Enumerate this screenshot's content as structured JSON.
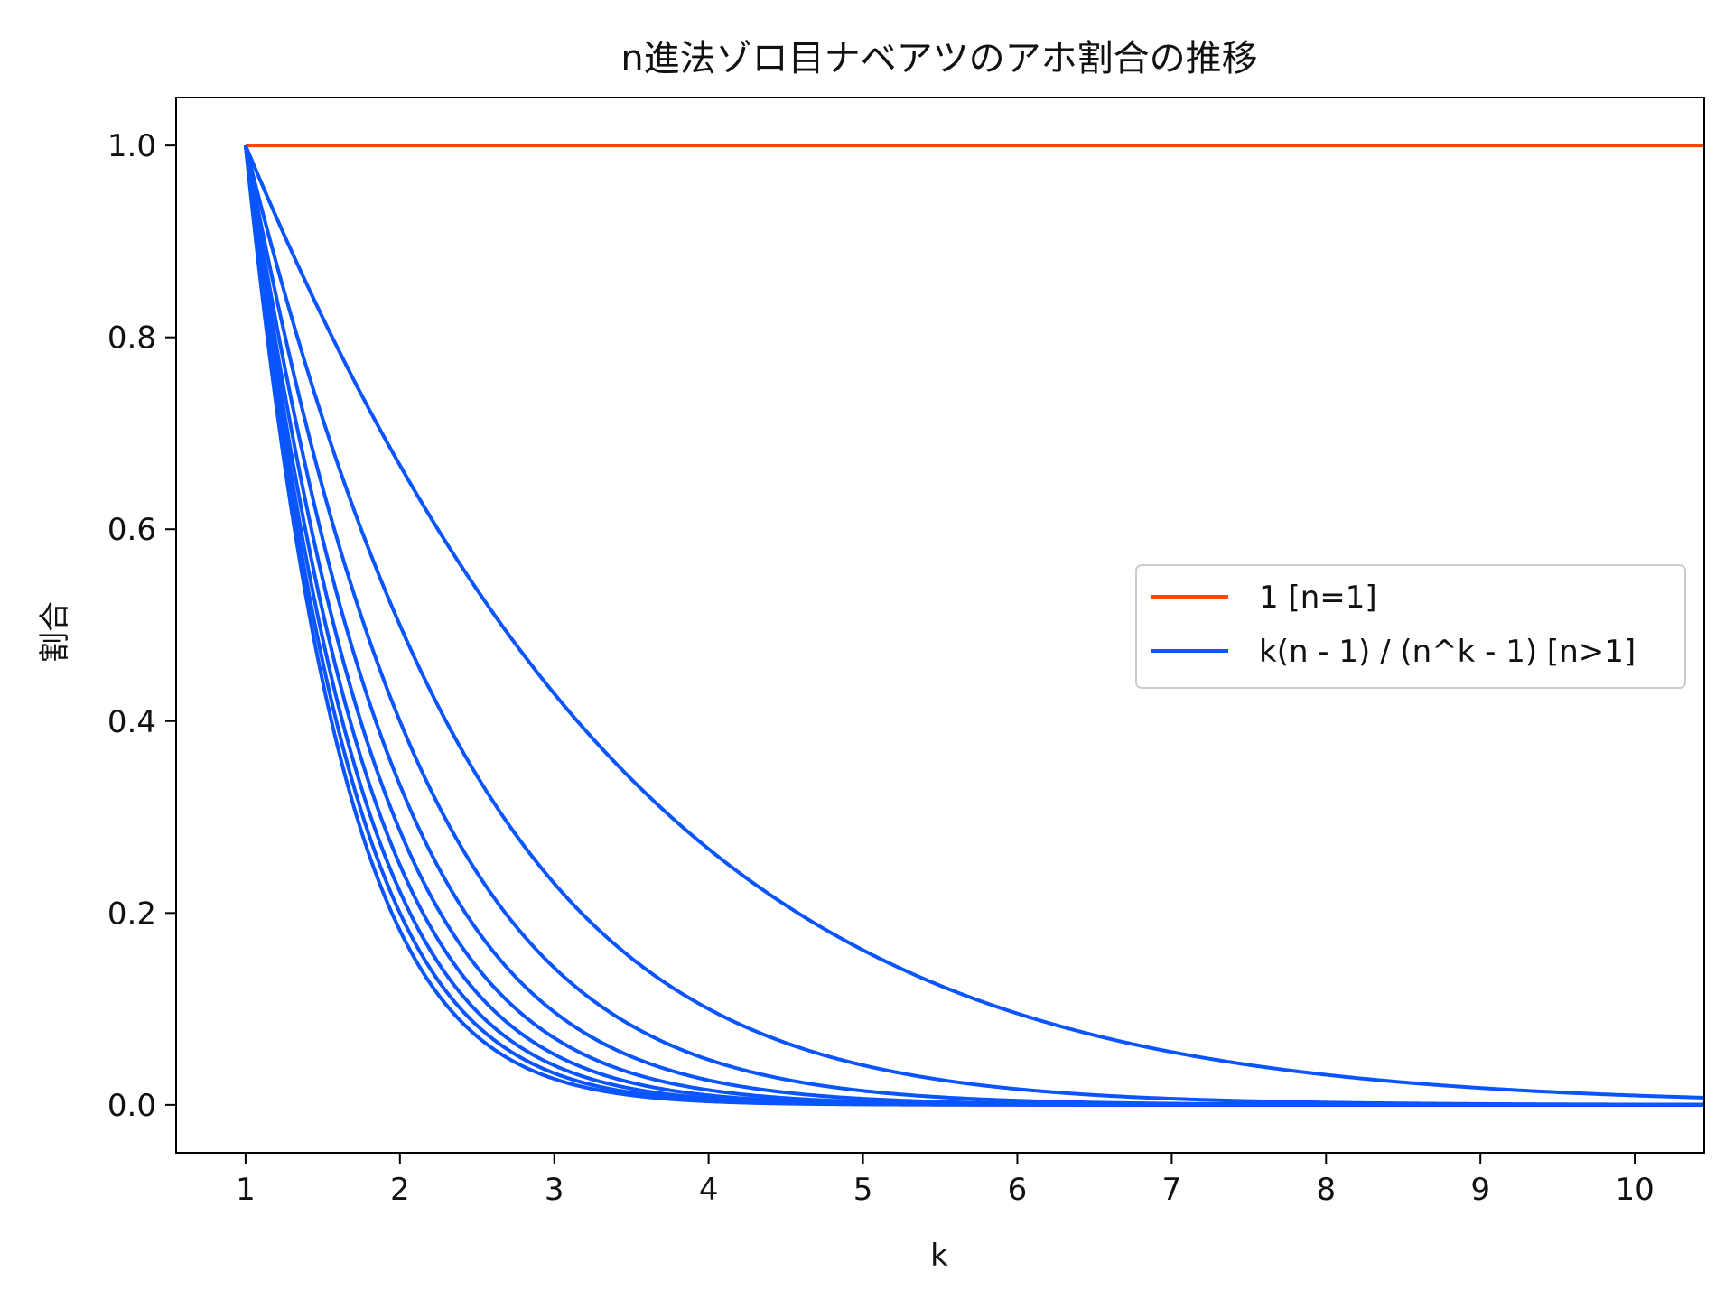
{
  "chart_data": {
    "type": "line",
    "title": "n進法ゾロ目ナベアツのアホ割合の推移",
    "xlabel": "k",
    "ylabel": "割合",
    "xlim": [
      0.55,
      10.45
    ],
    "ylim": [
      -0.05,
      1.05
    ],
    "xticks": [
      "1",
      "2",
      "3",
      "4",
      "5",
      "6",
      "7",
      "8",
      "9",
      "10"
    ],
    "yticks": [
      "0.0",
      "0.2",
      "0.4",
      "0.6",
      "0.8",
      "1.0"
    ],
    "grid": false,
    "legend_position": "center-right",
    "x": [
      1,
      2,
      3,
      4,
      5,
      6,
      7,
      8,
      9,
      10
    ],
    "series": [
      {
        "name": "1 [n=1]",
        "color": "#ff4500",
        "formula_n": 1,
        "values": [
          1,
          1,
          1,
          1,
          1,
          1,
          1,
          1,
          1,
          1
        ]
      },
      {
        "name": "k(n - 1) / (n^k - 1) [n>1]",
        "color": "#0a55ff",
        "formula_n": 2,
        "values": [
          1,
          0.667,
          0.429,
          0.267,
          0.161,
          0.095,
          0.055,
          0.031,
          0.018,
          0.01
        ]
      },
      {
        "name": "",
        "color": "#0a55ff",
        "formula_n": 3,
        "values": [
          1,
          0.5,
          0.231,
          0.1,
          0.041,
          0.016,
          0.006,
          0.002,
          0.001,
          0.0
        ]
      },
      {
        "name": "",
        "color": "#0a55ff",
        "formula_n": 4,
        "values": [
          1,
          0.4,
          0.143,
          0.047,
          0.015,
          0.004,
          0.001,
          0.0,
          0.0,
          0.0
        ]
      },
      {
        "name": "",
        "color": "#0a55ff",
        "formula_n": 5,
        "values": [
          1,
          0.333,
          0.097,
          0.026,
          0.006,
          0.002,
          0.0,
          0.0,
          0.0,
          0.0
        ]
      },
      {
        "name": "",
        "color": "#0a55ff",
        "formula_n": 6,
        "values": [
          1,
          0.286,
          0.07,
          0.015,
          0.003,
          0.001,
          0.0,
          0.0,
          0.0,
          0.0
        ]
      },
      {
        "name": "",
        "color": "#0a55ff",
        "formula_n": 7,
        "values": [
          1,
          0.25,
          0.053,
          0.01,
          0.002,
          0.0,
          0.0,
          0.0,
          0.0,
          0.0
        ]
      },
      {
        "name": "",
        "color": "#0a55ff",
        "formula_n": 8,
        "values": [
          1,
          0.222,
          0.041,
          0.007,
          0.001,
          0.0,
          0.0,
          0.0,
          0.0,
          0.0
        ]
      },
      {
        "name": "",
        "color": "#0a55ff",
        "formula_n": 9,
        "values": [
          1,
          0.2,
          0.033,
          0.005,
          0.001,
          0.0,
          0.0,
          0.0,
          0.0,
          0.0
        ]
      },
      {
        "name": "",
        "color": "#0a55ff",
        "formula_n": 10,
        "values": [
          1,
          0.182,
          0.027,
          0.004,
          0.0,
          0.0,
          0.0,
          0.0,
          0.0,
          0.0
        ]
      }
    ],
    "legend": [
      {
        "label": "1 [n=1]",
        "color": "#ff4500"
      },
      {
        "label": "k(n - 1) / (n^k - 1) [n>1]",
        "color": "#0a55ff"
      }
    ]
  }
}
